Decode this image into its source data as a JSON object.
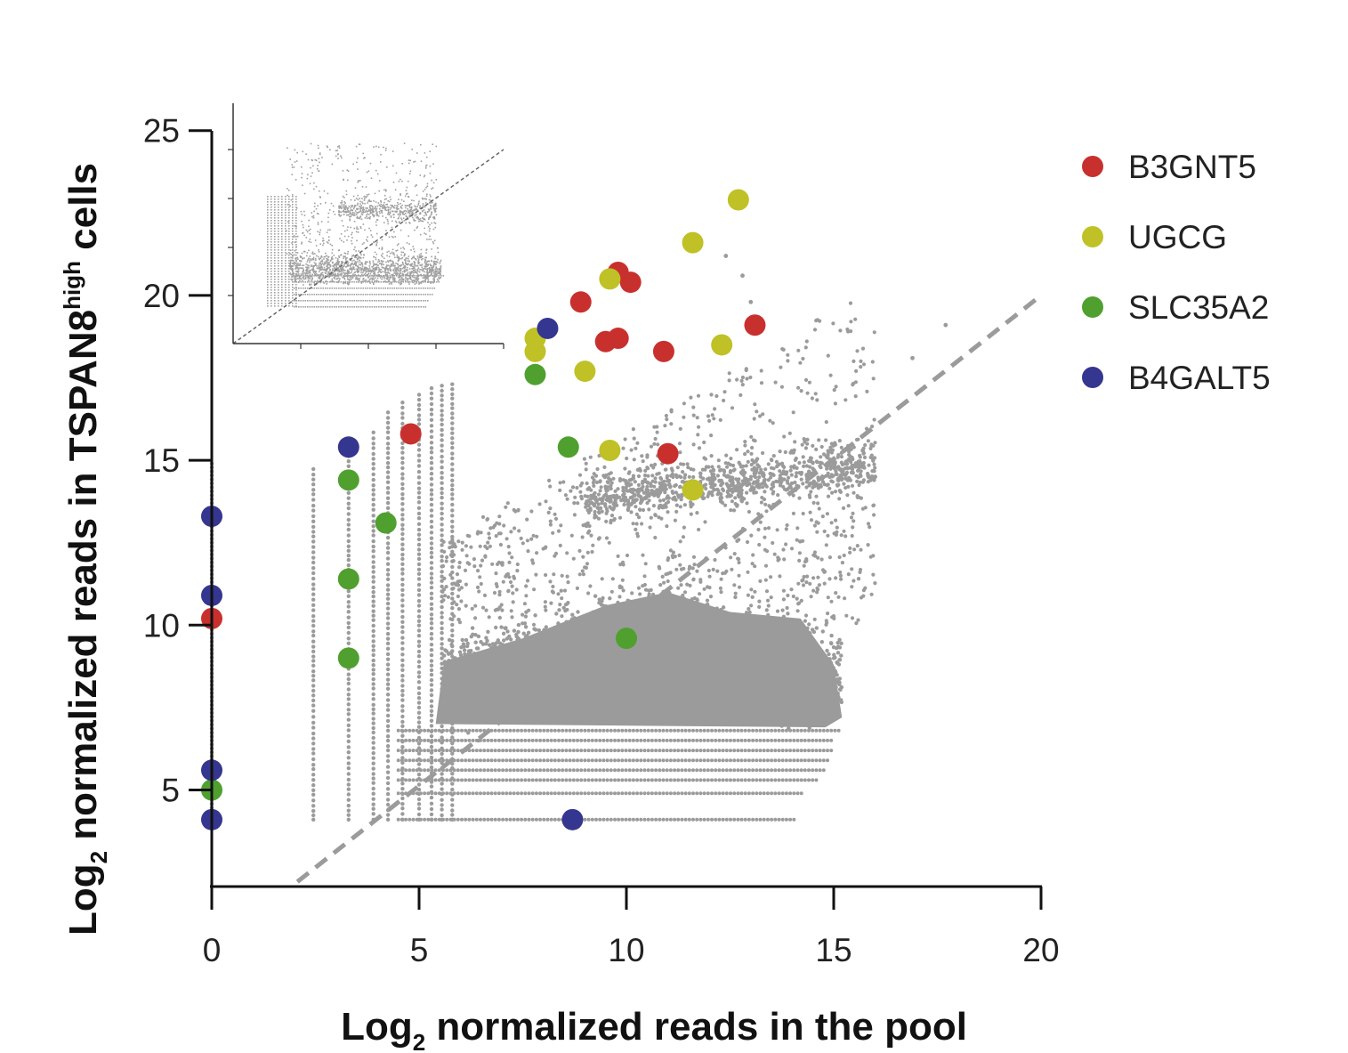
{
  "chart_data": [
    {
      "type": "scatter",
      "title": "",
      "xlabel": {
        "prefix": "Log",
        "subscript": "2",
        "text": " normalized reads in the pool"
      },
      "ylabel": {
        "prefix": "Log",
        "subscript": "2",
        "text": " normalized reads in TSPAN8",
        "superscript": "high",
        "suffix": " cells"
      },
      "xlim": [
        0,
        20
      ],
      "ylim": [
        2,
        25
      ],
      "xticks": [
        "0",
        "5",
        "10",
        "15",
        "20"
      ],
      "yticks": [
        "5",
        "10",
        "15",
        "20",
        "25"
      ],
      "grid": false,
      "legend_position": "right",
      "reference_line": {
        "style": "dashed",
        "color": "#9b9b9b",
        "from": [
          2,
          2
        ],
        "to": [
          20,
          20
        ]
      },
      "background_color": "#9b9b9b",
      "background_description_points": 6000,
      "series": [
        {
          "name": "B3GNT5",
          "color": "#c8302e",
          "points": [
            [
              0,
              10.2
            ],
            [
              4.8,
              15.8
            ],
            [
              8.9,
              19.8
            ],
            [
              9.5,
              18.6
            ],
            [
              9.8,
              18.7
            ],
            [
              9.8,
              20.7
            ],
            [
              10.1,
              20.4
            ],
            [
              10.9,
              18.3
            ],
            [
              11.0,
              15.2
            ],
            [
              13.1,
              19.1
            ]
          ]
        },
        {
          "name": "UGCG",
          "color": "#bfc126",
          "points": [
            [
              7.8,
              18.7
            ],
            [
              7.8,
              18.3
            ],
            [
              9.0,
              17.7
            ],
            [
              9.6,
              20.5
            ],
            [
              9.6,
              15.3
            ],
            [
              11.6,
              14.1
            ],
            [
              11.6,
              21.6
            ],
            [
              12.3,
              18.5
            ],
            [
              12.7,
              22.9
            ]
          ]
        },
        {
          "name": "SLC35A2",
          "color": "#4fa02f",
          "points": [
            [
              0,
              5.0
            ],
            [
              3.3,
              14.4
            ],
            [
              3.3,
              11.4
            ],
            [
              3.3,
              9.0
            ],
            [
              4.2,
              13.1
            ],
            [
              7.8,
              17.6
            ],
            [
              8.6,
              15.4
            ],
            [
              10.0,
              9.6
            ]
          ]
        },
        {
          "name": "B4GALT5",
          "color": "#35368f",
          "points": [
            [
              0,
              13.3
            ],
            [
              0,
              10.9
            ],
            [
              0,
              5.6
            ],
            [
              0,
              4.1
            ],
            [
              3.3,
              15.4
            ],
            [
              8.1,
              19.0
            ],
            [
              8.7,
              4.1
            ]
          ]
        }
      ]
    },
    {
      "type": "scatter",
      "role": "inset",
      "title": "",
      "xlabel": "",
      "ylabel": "",
      "grid": false,
      "reference_line": {
        "style": "dashed",
        "color": "#666666"
      },
      "background_color": "#a0a0a0"
    }
  ]
}
